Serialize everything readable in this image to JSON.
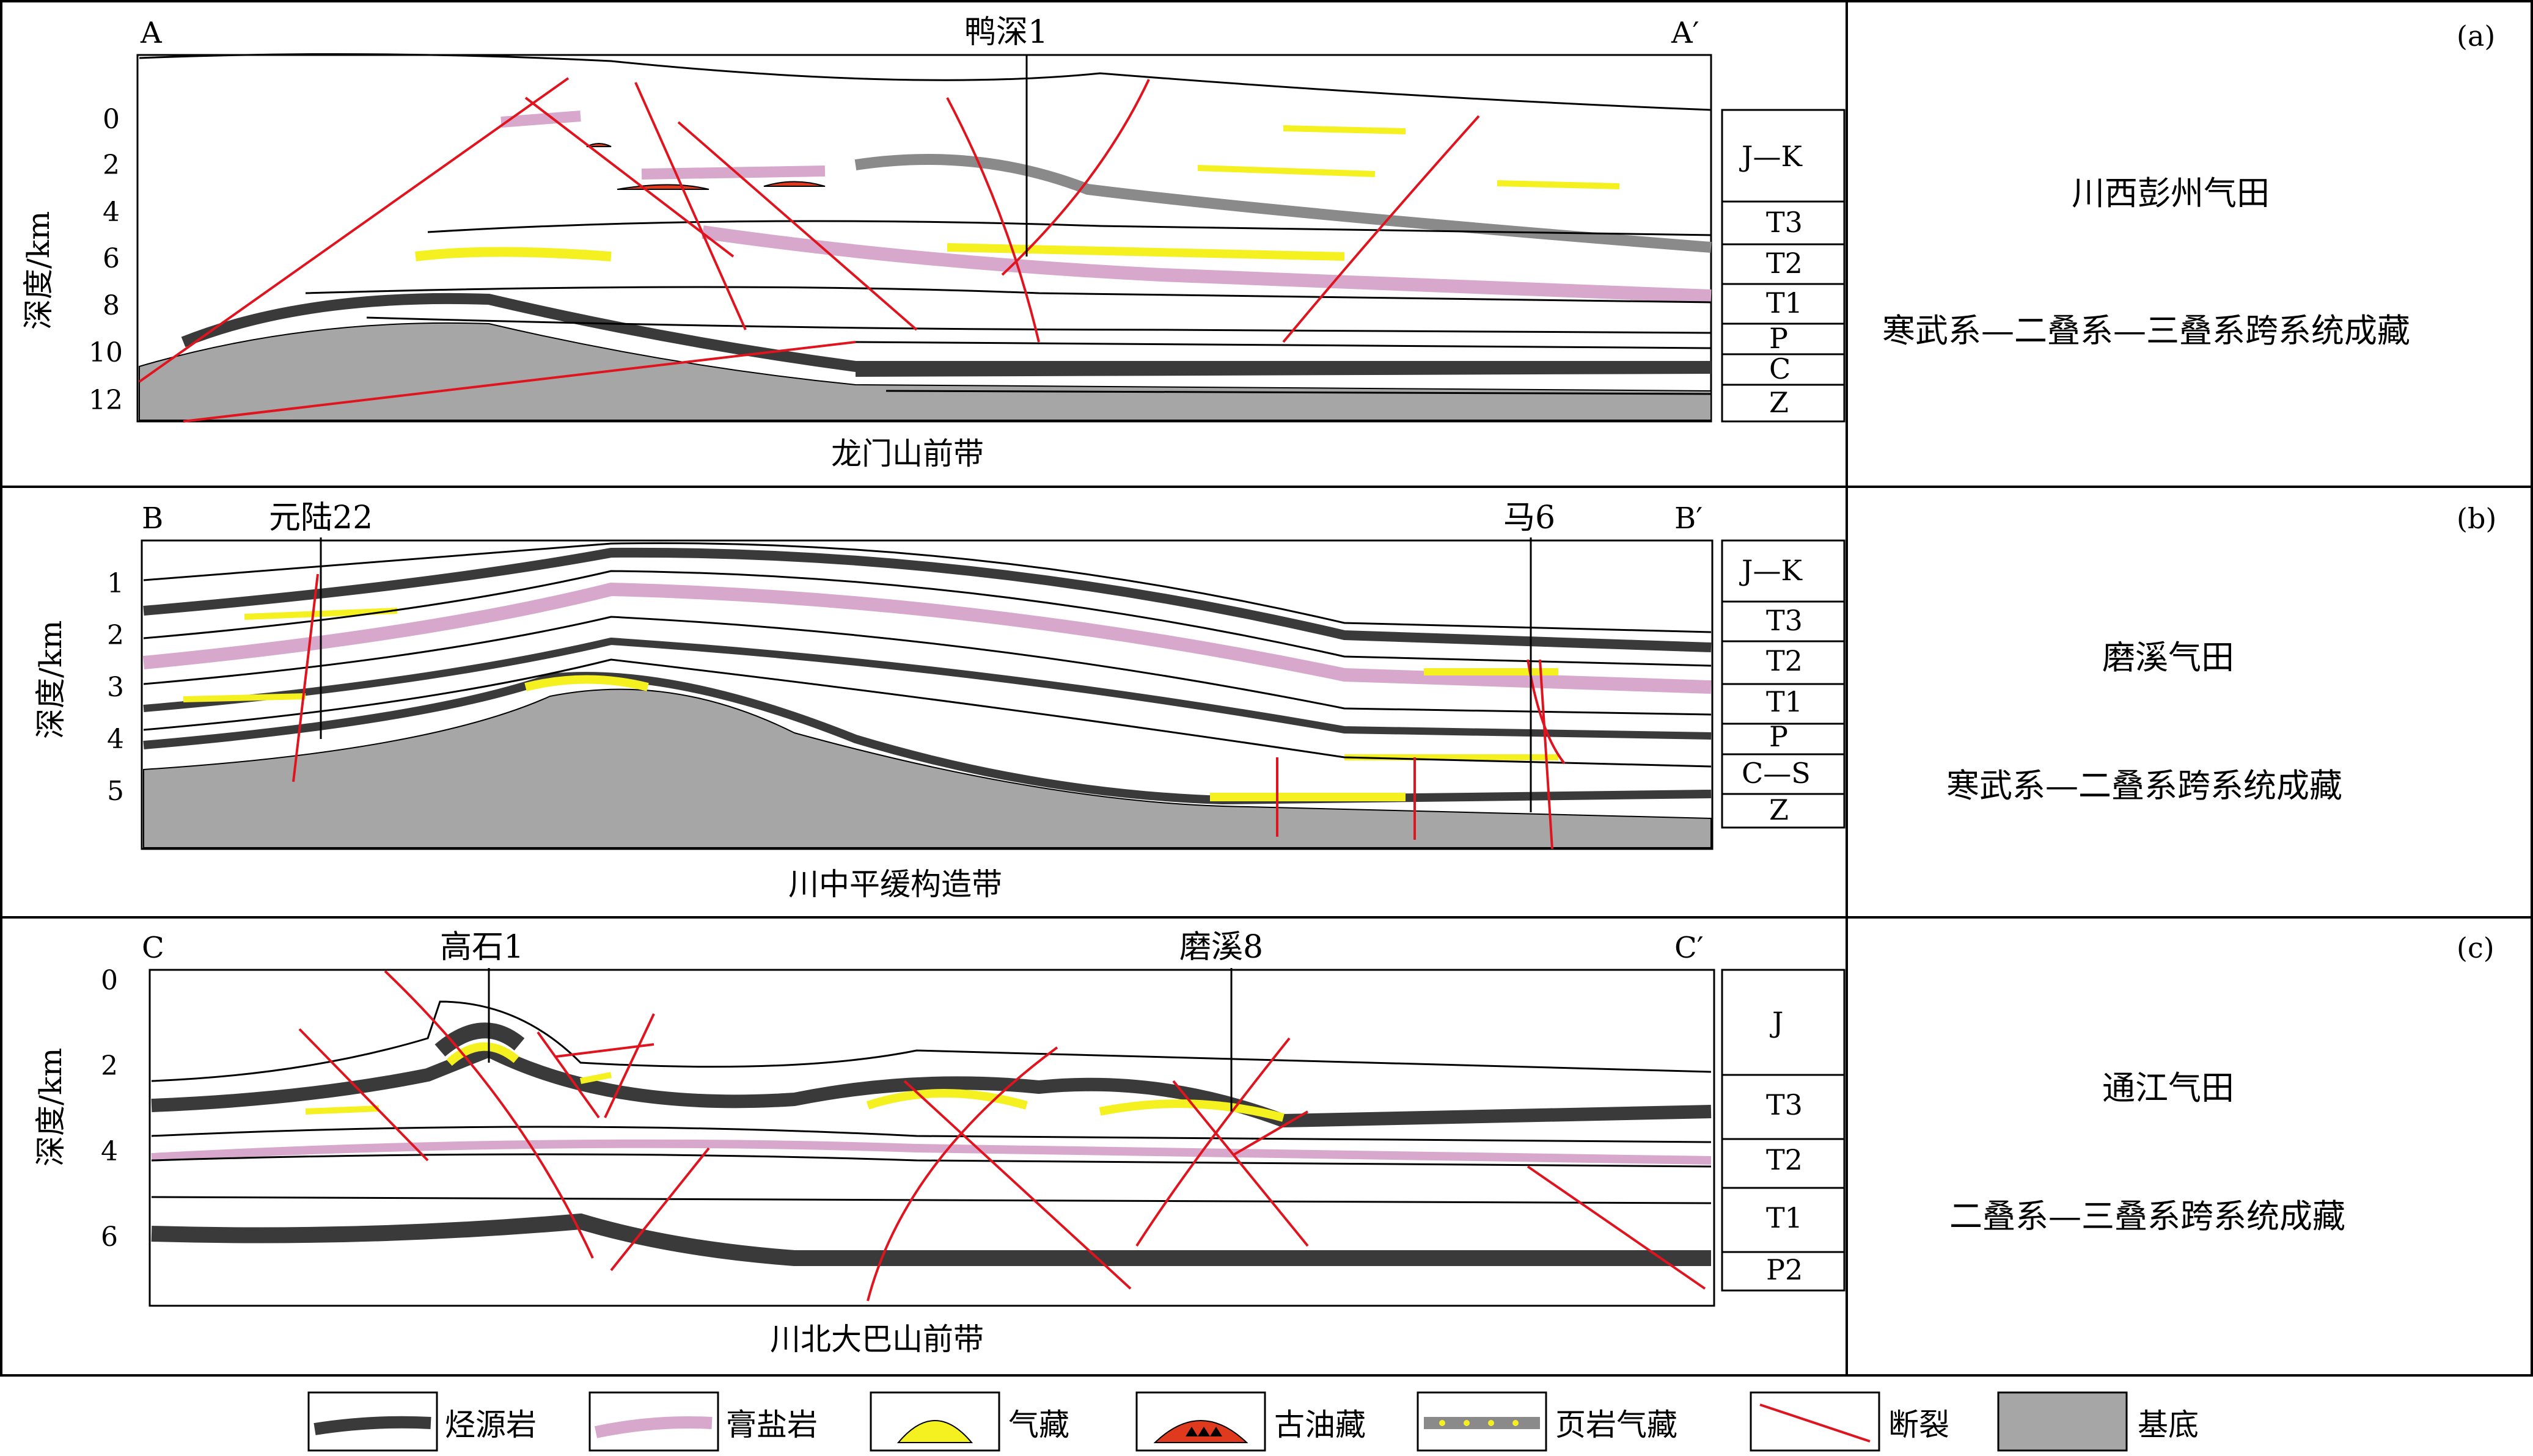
{
  "panels": [
    {
      "letter": "(a)",
      "left_end": "A",
      "right_end": "A′",
      "wells": [
        "鸭深1"
      ],
      "axis_label": "深度/km",
      "depth_ticks": [
        "0",
        "2",
        "4",
        "6",
        "8",
        "10",
        "12"
      ],
      "strata": [
        "J—K",
        "T3",
        "T2",
        "T1",
        "P",
        "C",
        "Z"
      ],
      "zone_label": "龙门山前带",
      "field_name": "川西彭州气田",
      "system_desc": "寒武系—二叠系—三叠系跨系统成藏"
    },
    {
      "letter": "(b)",
      "left_end": "B",
      "right_end": "B′",
      "wells": [
        "元陆22",
        "马6"
      ],
      "axis_label": "深度/km",
      "depth_ticks": [
        "1",
        "2",
        "3",
        "4",
        "5"
      ],
      "strata": [
        "J—K",
        "T3",
        "T2",
        "T1",
        "P",
        "C—S",
        "Z"
      ],
      "zone_label": "川中平缓构造带",
      "field_name": "磨溪气田",
      "system_desc": "寒武系—二叠系跨系统成藏"
    },
    {
      "letter": "(c)",
      "left_end": "C",
      "right_end": "C′",
      "wells": [
        "高石1",
        "磨溪8"
      ],
      "axis_label": "深度/km",
      "depth_ticks": [
        "0",
        "2",
        "4",
        "6"
      ],
      "strata": [
        "J",
        "T3",
        "T2",
        "T1",
        "P2"
      ],
      "zone_label": "川北大巴山前带",
      "field_name": "通江气田",
      "system_desc": "二叠系—三叠系跨系统成藏"
    }
  ],
  "legend": [
    "烃源岩",
    "膏盐岩",
    "气藏",
    "古油藏",
    "页岩气藏",
    "断裂",
    "基底"
  ],
  "colors": {
    "source_rock": "#3a3a3a",
    "gypsum_salt": "#d8a8cc",
    "gas": "#f5f020",
    "paleo_oil": "#e03a1e",
    "shale_gas": "#8a8a8a",
    "fault": "#e0141e",
    "basement": "#a6a6a6"
  }
}
